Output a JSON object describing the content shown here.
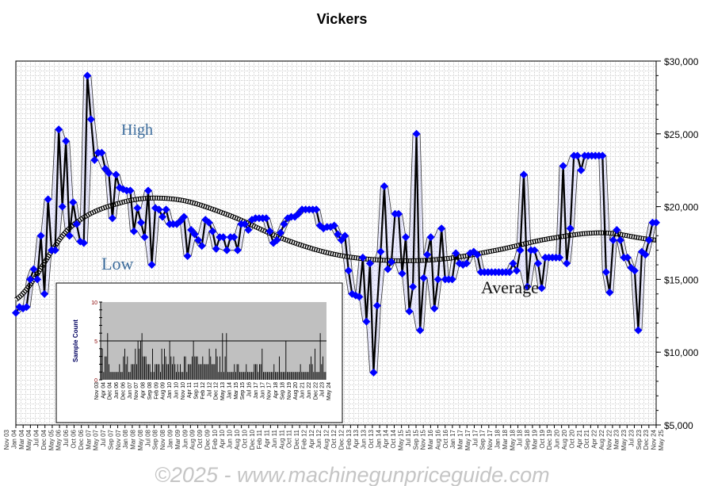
{
  "chart_data": {
    "type": "line",
    "title": "Vickers",
    "y_axis": {
      "min": 5000,
      "max": 30000,
      "step": 5000,
      "position": "right",
      "tick_labels": [
        "$5,000",
        "$10,000",
        "$15,000",
        "$20,000",
        "$25,000",
        "$30,000"
      ]
    },
    "x_tick_labels": [
      "Nov 03",
      "Jan 04",
      "Mar 04",
      "May 04",
      "Jul 04",
      "Dec 04",
      "May 05",
      "May 06",
      "Jul 06",
      "Oct 06",
      "Dec 06",
      "Mar 07",
      "May 07",
      "Jul 07",
      "Sep 07",
      "Nov 07",
      "Jan 08",
      "Mar 08",
      "May 08",
      "Jul 08",
      "Sep 08",
      "Nov 08",
      "Jan 09",
      "Mar 09",
      "Jun 09",
      "Aug 09",
      "Oct 09",
      "Dec 09",
      "Feb 10",
      "Apr 10",
      "Jun 10",
      "Aug 10",
      "Oct 10",
      "Dec 10",
      "Feb 11",
      "Apr 11",
      "Jun 11",
      "Aug 11",
      "Oct 11",
      "Dec 11",
      "Feb 12",
      "Apr 12",
      "Jun 12",
      "Aug 12",
      "Oct 12",
      "Dec 12",
      "Feb 13",
      "Apr 13",
      "Jun 13",
      "Oct 13",
      "Jan 14",
      "Apr 14",
      "Oct 14",
      "May 15",
      "Jul 15",
      "Sep 15",
      "Nov 15",
      "Mar 16",
      "Aug 16",
      "Oct 16",
      "Jan 17",
      "Mar 17",
      "May 17",
      "Jul 17",
      "Sep 17",
      "Nov 17",
      "Jan 18",
      "Mar 18",
      "May 18",
      "Jul 18",
      "Sep 18",
      "Mar 19",
      "Oct 19",
      "Dec 19",
      "Jun 20",
      "Aug 20",
      "Oct 20",
      "Apr 21",
      "Oct 21",
      "Apr 22",
      "Aug 22",
      "Nov 22",
      "Mar 23",
      "May 23",
      "Jul 23",
      "Sep 23",
      "Dec 23",
      "Nov 24",
      "May 25"
    ],
    "series": [
      {
        "values": [
          12700,
          13100,
          13000,
          13100,
          15000,
          15700,
          15000,
          18000,
          14000,
          20500,
          17000,
          17000,
          25300,
          20000,
          24500,
          18000,
          20300,
          18800,
          17600,
          17500,
          29000,
          26000,
          23200,
          23700,
          23700,
          22600,
          22300,
          19200,
          22200,
          21300,
          21200,
          21100,
          21100,
          18300,
          19900,
          18900,
          17900,
          21100,
          16000,
          19900,
          19800,
          19300,
          19800,
          18800,
          18800,
          18800,
          19000,
          19300,
          16600,
          18400,
          18100,
          17700,
          17300,
          19100,
          18900,
          18300,
          17100,
          17900,
          17900,
          17000,
          17900,
          17900,
          17000,
          18800,
          18800,
          18400,
          19100,
          19200,
          19200,
          19200,
          19200,
          18300,
          17500,
          17700,
          18200,
          18800,
          19200,
          19300,
          19300,
          19500,
          19800,
          19800,
          19800,
          19800,
          19800,
          18700,
          18500,
          18600,
          18600,
          18700,
          18100,
          17700,
          18000,
          15600,
          14000,
          13900,
          13800,
          16500,
          12100,
          16100,
          8600,
          13200,
          16900,
          21400,
          15700,
          16200,
          19500,
          19500,
          15400,
          17900,
          12800,
          14500,
          25000,
          11500,
          15100,
          16700,
          17900,
          13000,
          15000,
          18500,
          15000,
          15000,
          15000,
          16800,
          16100,
          16000,
          16100,
          16800,
          16900,
          16700,
          15500,
          15500,
          15500,
          15500,
          15500,
          15500,
          15500,
          15500,
          15500,
          16100,
          15600,
          17000,
          22200,
          14500,
          17000,
          17000,
          16100,
          14400,
          16500,
          16500,
          16500,
          16500,
          16500,
          22800,
          16100,
          18500,
          23500,
          23500,
          22500,
          23500,
          23500,
          23500,
          23500,
          23500,
          23500,
          15500,
          14100,
          17700,
          18400,
          17700,
          16500,
          16500,
          15800,
          15600,
          11500,
          16900,
          16700,
          17700,
          18900,
          18900
        ]
      }
    ],
    "average": [
      13600,
      18500,
      20300,
      20500,
      19400,
      17800,
      16700,
      16300,
      16400,
      17000,
      17800,
      18200,
      17700
    ],
    "colors": {
      "price_line": "#000000",
      "marker": "#0000ff",
      "average": "#000000",
      "band_fill": "#0000ff"
    },
    "annotations": {
      "high": "High",
      "low": "Low",
      "average": "Average"
    },
    "grid": true,
    "watermark": "©2025 - www.machinegunpriceguide.com",
    "inset": {
      "type": "bar",
      "ylabel": "Sample Count",
      "y_axis": {
        "min": 0,
        "max": 10,
        "tick_labels": [
          "0",
          "5",
          "10"
        ]
      },
      "reference_line": 5,
      "x_tick_labels": [
        "Nov 03",
        "Apr 04",
        "Dec 04",
        "Jun 06",
        "Dec 06",
        "Jun 07",
        "Nov 07",
        "Apr 08",
        "Sep 08",
        "Feb 09",
        "Aug 09",
        "Jan 10",
        "Jun 10",
        "Nov 10",
        "Apr 11",
        "Sep 11",
        "Feb 12",
        "Jul 12",
        "Dec 12",
        "May 13",
        "Jan 14",
        "Mar 15",
        "Sep 15",
        "Jul 16",
        "Jan 17",
        "Jun 17",
        "Nov 17",
        "Apr 18",
        "Sep 18",
        "Nov 19",
        "Aug 20",
        "Jun 21",
        "Jun 22",
        "Dec 22",
        "Jul 23",
        "May 24"
      ],
      "values": [
        4,
        4,
        1,
        3,
        3,
        6,
        2,
        1,
        1,
        1,
        1,
        1,
        1,
        1,
        2,
        1,
        1,
        3,
        4,
        2,
        3,
        1,
        1,
        2,
        2,
        2,
        4,
        2,
        5,
        4,
        5,
        6,
        3,
        3,
        3,
        2,
        2,
        2,
        1,
        4,
        1,
        2,
        2,
        2,
        2,
        1,
        4,
        2,
        4,
        3,
        2,
        2,
        5,
        3,
        2,
        3,
        2,
        1,
        2,
        1,
        2,
        1,
        1,
        3,
        3,
        1,
        2,
        2,
        2,
        3,
        5,
        3,
        3,
        3,
        2,
        2,
        2,
        3,
        2,
        2,
        2,
        2,
        4,
        3,
        2,
        2,
        2,
        4,
        3,
        1,
        3,
        1,
        6,
        1,
        3,
        6,
        1,
        1,
        1,
        1,
        1,
        2,
        1,
        2,
        2,
        1,
        1,
        1,
        1,
        1,
        2,
        1,
        1,
        1,
        1,
        1,
        2,
        2,
        2,
        1,
        2,
        2,
        4,
        1,
        1,
        1,
        1,
        1,
        1,
        1,
        1,
        2,
        1,
        1,
        1,
        3,
        1,
        1,
        1,
        1,
        5,
        1,
        1,
        1,
        1,
        1,
        1,
        1,
        1,
        1,
        1,
        2,
        1,
        1,
        1,
        1,
        1,
        1,
        2,
        3,
        2,
        1,
        4,
        1,
        1,
        1,
        6,
        2,
        3,
        1,
        1
      ]
    }
  }
}
